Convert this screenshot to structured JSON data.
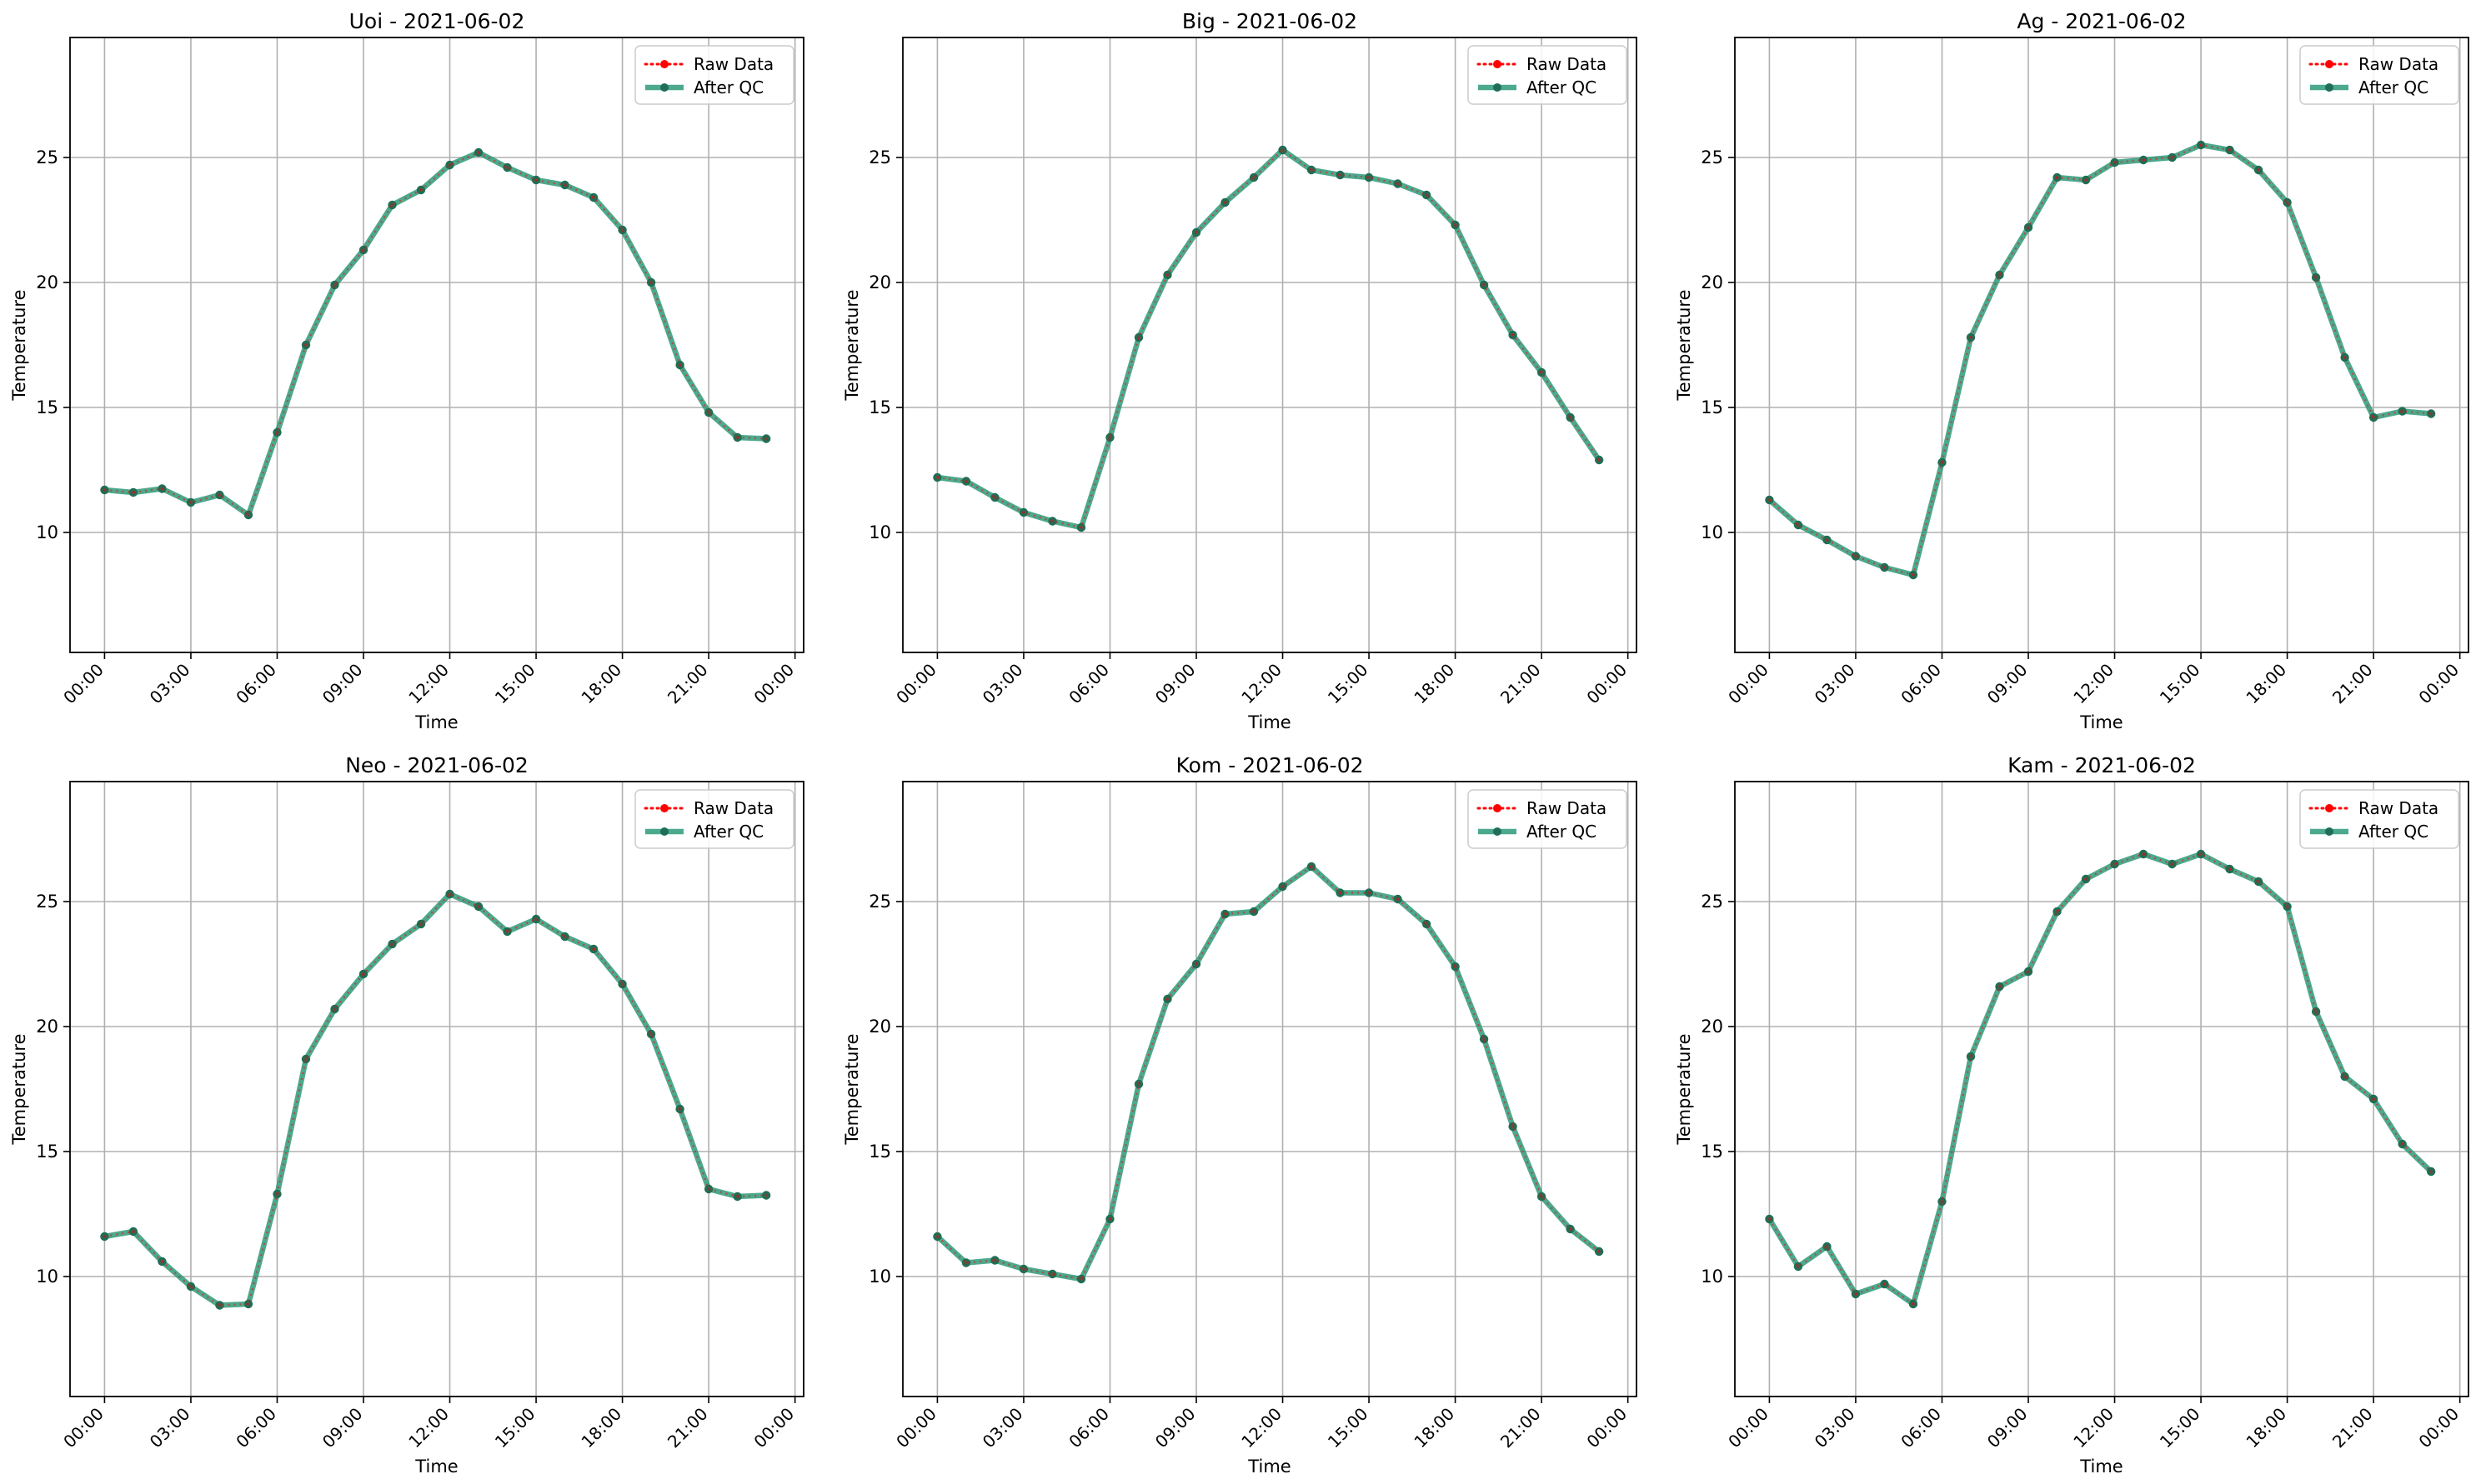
{
  "chart_data": [
    {
      "type": "line",
      "title": "Uoi - 2021-06-02",
      "xlabel": "Time",
      "ylabel": "Temperature",
      "ylim": [
        5.2,
        29.8
      ],
      "xlim_hours": [
        -1.2,
        24.3
      ],
      "grid": true,
      "legend": "top-right",
      "x_hours": [
        0,
        1,
        2,
        3,
        4,
        5,
        6,
        7,
        8,
        9,
        10,
        11,
        12,
        13,
        14,
        15,
        16,
        17,
        18,
        19,
        20,
        21,
        22,
        23
      ],
      "xticks": [
        "00:00",
        "03:00",
        "06:00",
        "09:00",
        "12:00",
        "15:00",
        "18:00",
        "21:00",
        "00:00"
      ],
      "yticks": [
        10,
        15,
        20,
        25
      ],
      "series": [
        {
          "name": "Raw Data",
          "values": [
            11.7,
            11.6,
            11.75,
            11.2,
            11.5,
            10.7,
            14.0,
            17.5,
            19.9,
            21.3,
            23.1,
            23.7,
            24.7,
            25.2,
            24.6,
            24.1,
            23.9,
            23.4,
            22.1,
            20.0,
            16.7,
            14.8,
            13.8,
            13.75
          ]
        },
        {
          "name": "After QC",
          "values": [
            11.7,
            11.6,
            11.75,
            11.2,
            11.5,
            10.7,
            14.0,
            17.5,
            19.9,
            21.3,
            23.1,
            23.7,
            24.7,
            25.2,
            24.6,
            24.1,
            23.9,
            23.4,
            22.1,
            20.0,
            16.7,
            14.8,
            13.8,
            13.75
          ]
        }
      ]
    },
    {
      "type": "line",
      "title": "Big - 2021-06-02",
      "xlabel": "Time",
      "ylabel": "Temperature",
      "ylim": [
        5.2,
        29.8
      ],
      "xlim_hours": [
        -1.2,
        24.3
      ],
      "grid": true,
      "legend": "top-right",
      "x_hours": [
        0,
        1,
        2,
        3,
        4,
        5,
        6,
        7,
        8,
        9,
        10,
        11,
        12,
        13,
        14,
        15,
        16,
        17,
        18,
        19,
        20,
        21,
        22,
        23
      ],
      "xticks": [
        "00:00",
        "03:00",
        "06:00",
        "09:00",
        "12:00",
        "15:00",
        "18:00",
        "21:00",
        "00:00"
      ],
      "yticks": [
        10,
        15,
        20,
        25
      ],
      "series": [
        {
          "name": "Raw Data",
          "values": [
            12.2,
            12.05,
            11.4,
            10.8,
            10.45,
            10.2,
            13.8,
            17.8,
            20.3,
            22.0,
            23.2,
            24.2,
            25.3,
            24.5,
            24.3,
            24.2,
            23.95,
            23.5,
            22.3,
            19.9,
            17.9,
            16.4,
            14.6,
            12.9
          ]
        },
        {
          "name": "After QC",
          "values": [
            12.2,
            12.05,
            11.4,
            10.8,
            10.45,
            10.2,
            13.8,
            17.8,
            20.3,
            22.0,
            23.2,
            24.2,
            25.3,
            24.5,
            24.3,
            24.2,
            23.95,
            23.5,
            22.3,
            19.9,
            17.9,
            16.4,
            14.6,
            12.9
          ]
        }
      ]
    },
    {
      "type": "line",
      "title": "Ag - 2021-06-02",
      "xlabel": "Time",
      "ylabel": "Temperature",
      "ylim": [
        5.2,
        29.8
      ],
      "xlim_hours": [
        -1.2,
        24.3
      ],
      "grid": true,
      "legend": "top-right",
      "x_hours": [
        0,
        1,
        2,
        3,
        4,
        5,
        6,
        7,
        8,
        9,
        10,
        11,
        12,
        13,
        14,
        15,
        16,
        17,
        18,
        19,
        20,
        21,
        22,
        23
      ],
      "xticks": [
        "00:00",
        "03:00",
        "06:00",
        "09:00",
        "12:00",
        "15:00",
        "18:00",
        "21:00",
        "00:00"
      ],
      "yticks": [
        10,
        15,
        20,
        25
      ],
      "series": [
        {
          "name": "Raw Data",
          "values": [
            11.3,
            10.3,
            9.7,
            9.05,
            8.6,
            8.3,
            12.8,
            17.8,
            20.3,
            22.2,
            24.2,
            24.1,
            24.8,
            24.9,
            25.0,
            25.5,
            25.3,
            24.5,
            23.2,
            20.2,
            17.0,
            14.6,
            14.85,
            14.75
          ]
        },
        {
          "name": "After QC",
          "values": [
            11.3,
            10.3,
            9.7,
            9.05,
            8.6,
            8.3,
            12.8,
            17.8,
            20.3,
            22.2,
            24.2,
            24.1,
            24.8,
            24.9,
            25.0,
            25.5,
            25.3,
            24.5,
            23.2,
            20.2,
            17.0,
            14.6,
            14.85,
            14.75
          ]
        }
      ]
    },
    {
      "type": "line",
      "title": "Neo - 2021-06-02",
      "xlabel": "Time",
      "ylabel": "Temperature",
      "ylim": [
        5.2,
        29.8
      ],
      "xlim_hours": [
        -1.2,
        24.3
      ],
      "grid": true,
      "legend": "top-right",
      "x_hours": [
        0,
        1,
        2,
        3,
        4,
        5,
        6,
        7,
        8,
        9,
        10,
        11,
        12,
        13,
        14,
        15,
        16,
        17,
        18,
        19,
        20,
        21,
        22,
        23
      ],
      "xticks": [
        "00:00",
        "03:00",
        "06:00",
        "09:00",
        "12:00",
        "15:00",
        "18:00",
        "21:00",
        "00:00"
      ],
      "yticks": [
        10,
        15,
        20,
        25
      ],
      "series": [
        {
          "name": "Raw Data",
          "values": [
            11.6,
            11.8,
            10.6,
            9.6,
            8.85,
            8.9,
            13.3,
            18.7,
            20.7,
            22.1,
            23.3,
            24.1,
            25.3,
            24.8,
            23.8,
            24.3,
            23.6,
            23.1,
            21.7,
            19.7,
            16.7,
            13.5,
            13.2,
            13.25
          ]
        },
        {
          "name": "After QC",
          "values": [
            11.6,
            11.8,
            10.6,
            9.6,
            8.85,
            8.9,
            13.3,
            18.7,
            20.7,
            22.1,
            23.3,
            24.1,
            25.3,
            24.8,
            23.8,
            24.3,
            23.6,
            23.1,
            21.7,
            19.7,
            16.7,
            13.5,
            13.2,
            13.25
          ]
        }
      ]
    },
    {
      "type": "line",
      "title": "Kom - 2021-06-02",
      "xlabel": "Time",
      "ylabel": "Temperature",
      "ylim": [
        5.2,
        29.8
      ],
      "xlim_hours": [
        -1.2,
        24.3
      ],
      "grid": true,
      "legend": "top-right",
      "x_hours": [
        0,
        1,
        2,
        3,
        4,
        5,
        6,
        7,
        8,
        9,
        10,
        11,
        12,
        13,
        14,
        15,
        16,
        17,
        18,
        19,
        20,
        21,
        22,
        23
      ],
      "xticks": [
        "00:00",
        "03:00",
        "06:00",
        "09:00",
        "12:00",
        "15:00",
        "18:00",
        "21:00",
        "00:00"
      ],
      "yticks": [
        10,
        15,
        20,
        25
      ],
      "series": [
        {
          "name": "Raw Data",
          "values": [
            11.6,
            10.55,
            10.65,
            10.3,
            10.1,
            9.9,
            12.3,
            17.7,
            21.1,
            22.5,
            24.5,
            24.6,
            25.6,
            26.4,
            25.35,
            25.35,
            25.1,
            24.1,
            22.4,
            19.5,
            16.0,
            13.2,
            11.9,
            11.0
          ]
        },
        {
          "name": "After QC",
          "values": [
            11.6,
            10.55,
            10.65,
            10.3,
            10.1,
            9.9,
            12.3,
            17.7,
            21.1,
            22.5,
            24.5,
            24.6,
            25.6,
            26.4,
            25.35,
            25.35,
            25.1,
            24.1,
            22.4,
            19.5,
            16.0,
            13.2,
            11.9,
            11.0
          ]
        }
      ]
    },
    {
      "type": "line",
      "title": "Kam - 2021-06-02",
      "xlabel": "Time",
      "ylabel": "Temperature",
      "ylim": [
        5.2,
        29.8
      ],
      "xlim_hours": [
        -1.2,
        24.3
      ],
      "grid": true,
      "legend": "top-right",
      "x_hours": [
        0,
        1,
        2,
        3,
        4,
        5,
        6,
        7,
        8,
        9,
        10,
        11,
        12,
        13,
        14,
        15,
        16,
        17,
        18,
        19,
        20,
        21,
        22,
        23
      ],
      "xticks": [
        "00:00",
        "03:00",
        "06:00",
        "09:00",
        "12:00",
        "15:00",
        "18:00",
        "21:00",
        "00:00"
      ],
      "yticks": [
        10,
        15,
        20,
        25
      ],
      "series": [
        {
          "name": "Raw Data",
          "values": [
            12.3,
            10.4,
            11.2,
            9.3,
            9.7,
            8.9,
            13.0,
            18.8,
            21.6,
            22.2,
            24.6,
            25.9,
            26.5,
            26.9,
            26.5,
            26.9,
            26.3,
            25.8,
            24.8,
            20.6,
            18.0,
            17.1,
            15.3,
            14.2
          ]
        },
        {
          "name": "After QC",
          "values": [
            12.3,
            10.4,
            11.2,
            9.3,
            9.7,
            8.9,
            13.0,
            18.8,
            21.6,
            22.2,
            24.6,
            25.9,
            26.5,
            26.9,
            26.5,
            26.9,
            26.3,
            25.8,
            24.8,
            20.6,
            18.0,
            17.1,
            15.3,
            14.2
          ]
        }
      ]
    }
  ],
  "colors": {
    "raw": "#ff0000",
    "qc": "#2e9a79",
    "grid": "#b0b0b0",
    "marker_qc": "#1f6e56"
  }
}
